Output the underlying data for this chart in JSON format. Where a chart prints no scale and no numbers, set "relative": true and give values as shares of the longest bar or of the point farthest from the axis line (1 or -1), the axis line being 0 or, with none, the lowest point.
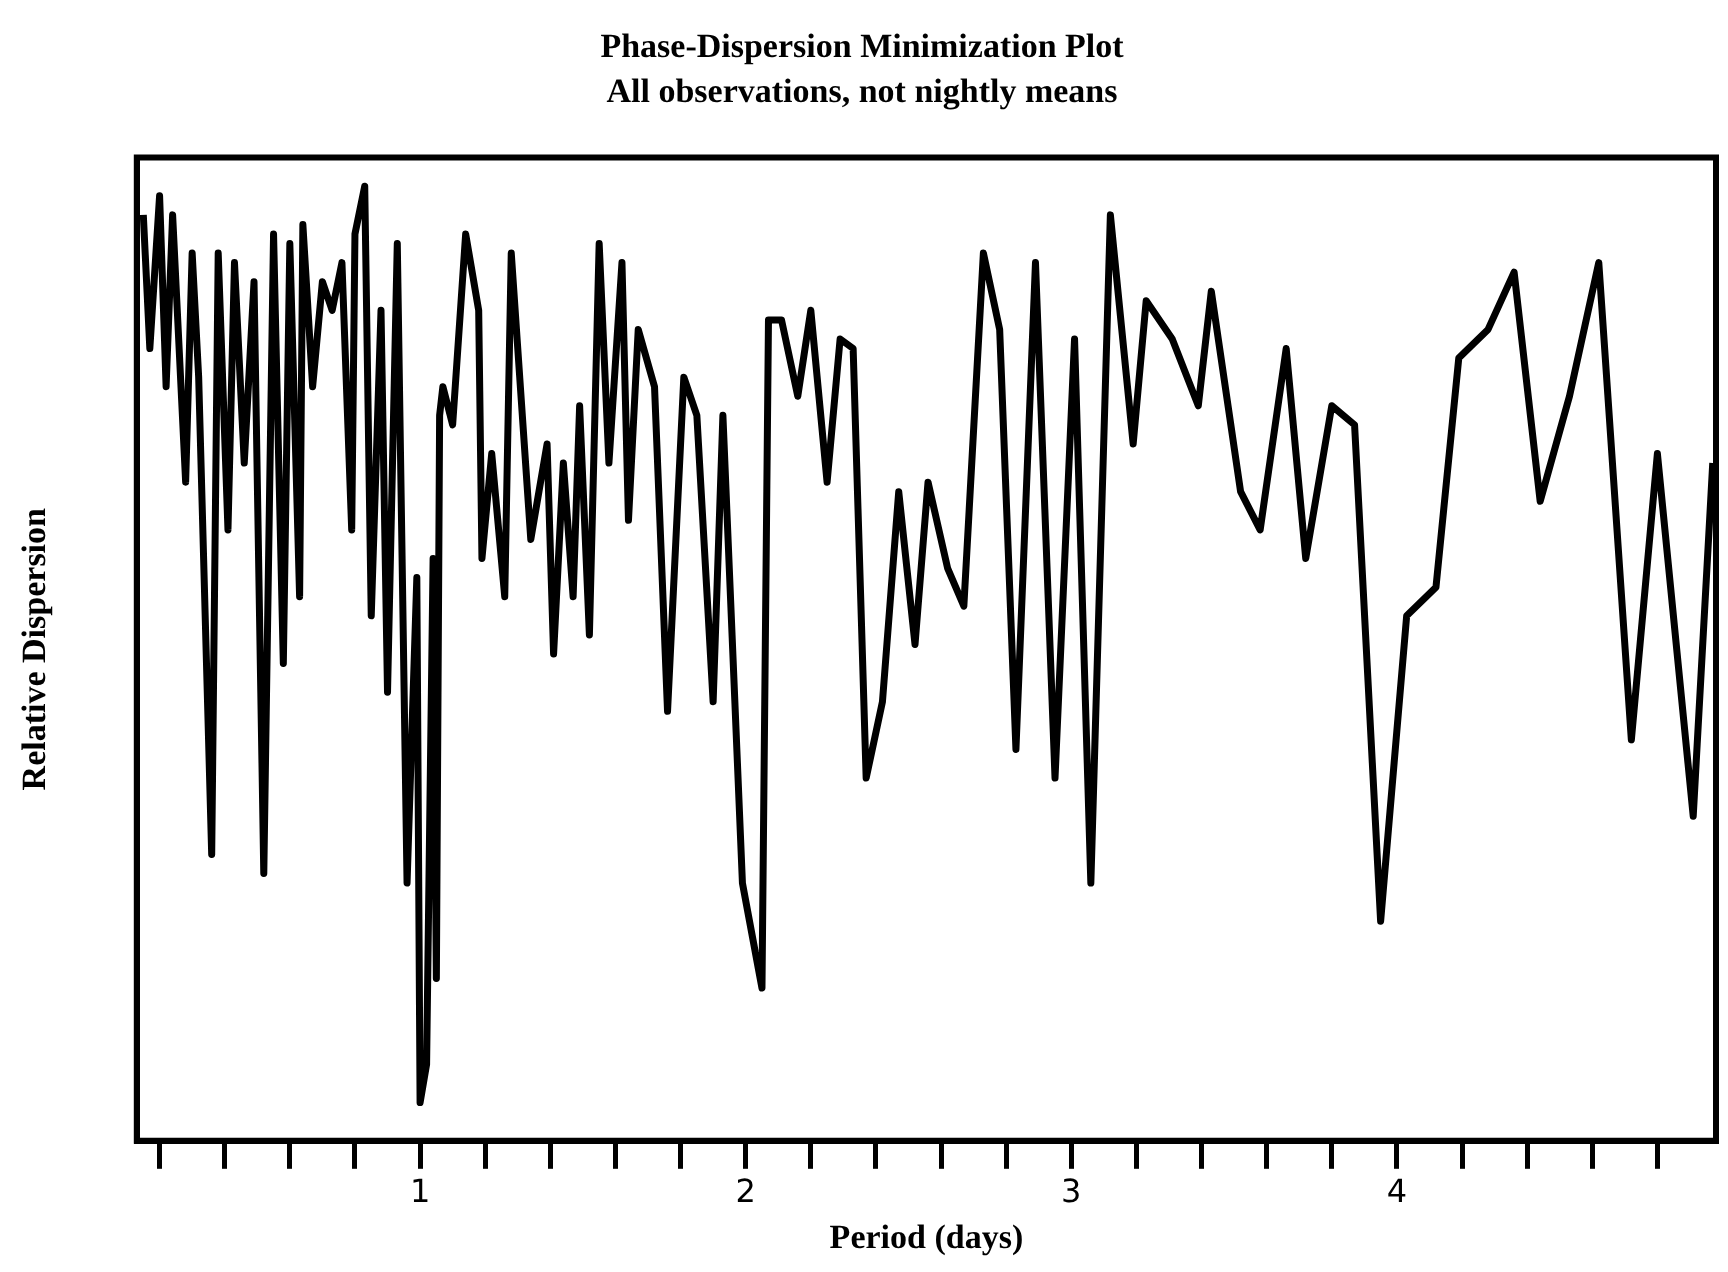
{
  "chart_data": {
    "type": "line",
    "title": "Phase-Dispersion Minimization Plot",
    "subtitle": "All observations, not nightly means",
    "xlabel": "Period (days)",
    "ylabel": "Relative Dispersion",
    "relative": true,
    "legend": false,
    "grid": false,
    "marker": "none",
    "line_style": "solid",
    "tick_labels": "x",
    "xlim": [
      0.13,
      4.98
    ],
    "xticks": [
      {
        "value": 0.2,
        "label": null
      },
      {
        "value": 0.4,
        "label": null
      },
      {
        "value": 0.6,
        "label": null
      },
      {
        "value": 0.8,
        "label": null
      },
      1,
      {
        "value": 1.2,
        "label": null
      },
      {
        "value": 1.4,
        "label": null
      },
      {
        "value": 1.6,
        "label": null
      },
      {
        "value": 1.8,
        "label": null
      },
      2,
      {
        "value": 2.2,
        "label": null
      },
      {
        "value": 2.4,
        "label": null
      },
      {
        "value": 2.6,
        "label": null
      },
      {
        "value": 2.8,
        "label": null
      },
      3,
      {
        "value": 3.2,
        "label": null
      },
      {
        "value": 3.4,
        "label": null
      },
      {
        "value": 3.6,
        "label": null
      },
      {
        "value": 3.8,
        "label": null
      },
      4,
      {
        "value": 4.2,
        "label": null
      },
      {
        "value": 4.4,
        "label": null
      },
      {
        "value": 4.6,
        "label": null
      },
      {
        "value": 4.8,
        "label": null
      }
    ],
    "x": [
      0.15,
      0.17,
      0.2,
      0.22,
      0.24,
      0.28,
      0.3,
      0.32,
      0.36,
      0.38,
      0.41,
      0.43,
      0.46,
      0.49,
      0.52,
      0.55,
      0.58,
      0.6,
      0.63,
      0.64,
      0.67,
      0.7,
      0.73,
      0.76,
      0.79,
      0.8,
      0.83,
      0.85,
      0.88,
      0.9,
      0.93,
      0.96,
      0.99,
      1.0,
      1.02,
      1.04,
      1.05,
      1.06,
      1.07,
      1.1,
      1.14,
      1.18,
      1.19,
      1.22,
      1.26,
      1.28,
      1.34,
      1.39,
      1.41,
      1.44,
      1.47,
      1.49,
      1.52,
      1.55,
      1.58,
      1.62,
      1.64,
      1.67,
      1.72,
      1.76,
      1.81,
      1.85,
      1.9,
      1.93,
      1.99,
      2.05,
      2.07,
      2.11,
      2.16,
      2.2,
      2.25,
      2.29,
      2.33,
      2.37,
      2.42,
      2.47,
      2.52,
      2.56,
      2.62,
      2.67,
      2.73,
      2.78,
      2.83,
      2.89,
      2.95,
      3.01,
      3.06,
      3.12,
      3.19,
      3.23,
      3.31,
      3.39,
      3.43,
      3.52,
      3.58,
      3.66,
      3.72,
      3.8,
      3.87,
      3.95,
      4.03,
      4.12,
      4.19,
      4.28,
      4.36,
      4.44,
      4.53,
      4.62,
      4.72,
      4.8,
      4.91,
      4.97
    ],
    "series": [
      {
        "color": "#000000",
        "values": [
          0.97,
          0.83,
          0.99,
          0.79,
          0.97,
          0.69,
          0.93,
          0.8,
          0.3,
          0.93,
          0.64,
          0.92,
          0.71,
          0.9,
          0.28,
          0.95,
          0.5,
          0.94,
          0.57,
          0.96,
          0.79,
          0.9,
          0.87,
          0.92,
          0.64,
          0.95,
          1.0,
          0.55,
          0.87,
          0.47,
          0.94,
          0.27,
          0.59,
          0.04,
          0.08,
          0.61,
          0.17,
          0.76,
          0.79,
          0.75,
          0.95,
          0.87,
          0.61,
          0.72,
          0.57,
          0.93,
          0.63,
          0.73,
          0.51,
          0.71,
          0.57,
          0.77,
          0.53,
          0.94,
          0.71,
          0.92,
          0.65,
          0.85,
          0.79,
          0.45,
          0.8,
          0.76,
          0.46,
          0.76,
          0.27,
          0.16,
          0.86,
          0.86,
          0.78,
          0.87,
          0.69,
          0.84,
          0.83,
          0.38,
          0.46,
          0.68,
          0.52,
          0.69,
          0.6,
          0.56,
          0.93,
          0.85,
          0.41,
          0.92,
          0.38,
          0.84,
          0.27,
          0.97,
          0.73,
          0.88,
          0.84,
          0.77,
          0.89,
          0.68,
          0.64,
          0.83,
          0.61,
          0.77,
          0.75,
          0.23,
          0.55,
          0.58,
          0.82,
          0.85,
          0.91,
          0.67,
          0.78,
          0.92,
          0.42,
          0.72,
          0.34,
          0.71
        ]
      }
    ]
  }
}
